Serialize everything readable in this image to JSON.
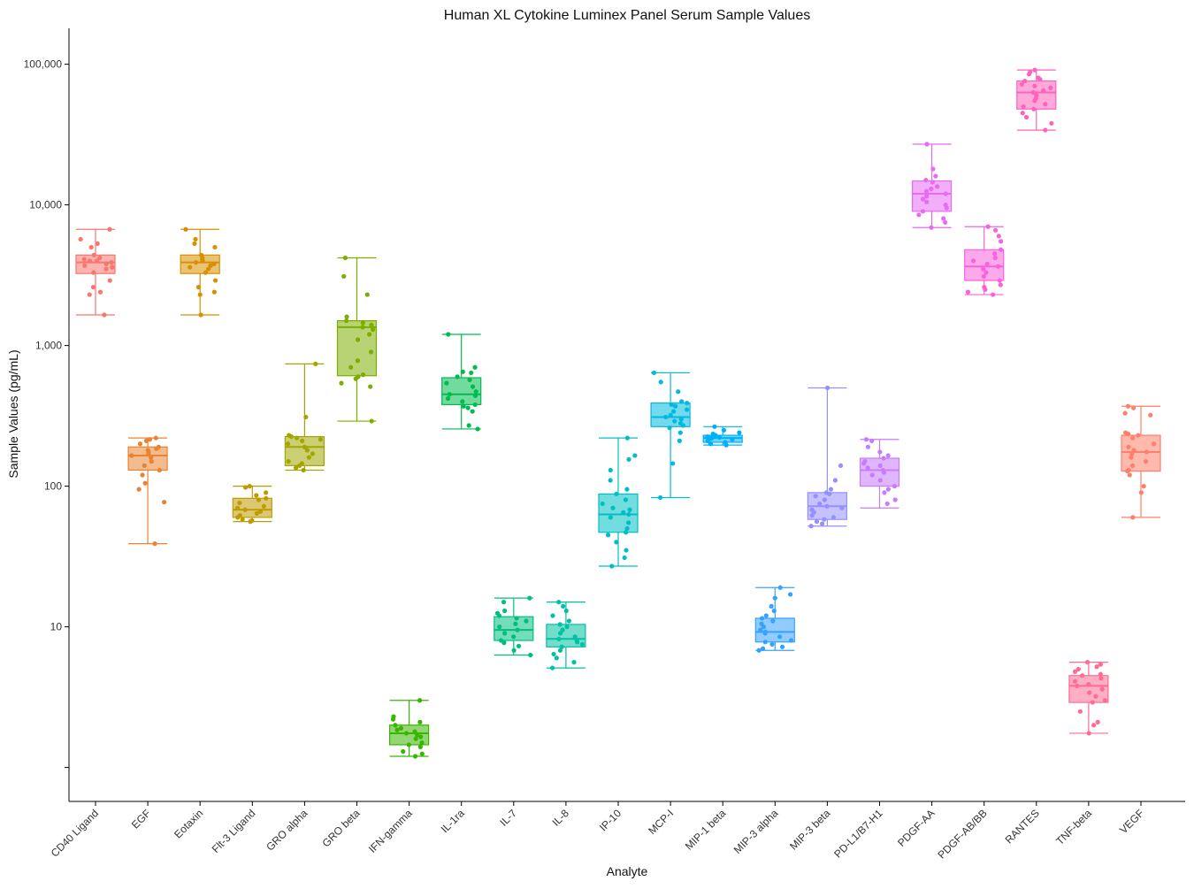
{
  "chart_data": {
    "type": "box",
    "title": "Human XL Cytokine Luminex Panel Serum Sample Values",
    "xlabel": "Analyte",
    "ylabel": "Sample Values (pg/mL)",
    "yscale": "log10",
    "ylim": [
      0.6,
      180000
    ],
    "y_ticks": [
      10,
      100,
      1000,
      10000,
      100000
    ],
    "y_tick_labels": [
      "10",
      "100",
      "1,000",
      "10,000",
      "100,000"
    ],
    "grid": false,
    "legend": "none",
    "categories": [
      "CD40 Ligand",
      "EGF",
      "Eotaxin",
      "Flt-3 Ligand",
      "GRO alpha",
      "GRO beta",
      "IFN-gamma",
      "IL-1ra",
      "IL-7",
      "IL-8",
      "IP-10",
      "MCP-I",
      "MIP-1 beta",
      "MIP-3 alpha",
      "MIP-3 beta",
      "PD-L1/B7-H1",
      "PDGF-AA",
      "PDGF-AB/BB",
      "RANTES",
      "TNF-beta",
      "VEGF"
    ],
    "colors": [
      "#F8766D",
      "#EA8331",
      "#D89000",
      "#C09B00",
      "#A3A500",
      "#7CAE00",
      "#39B600",
      "#00BB4E",
      "#00BF7D",
      "#00C1A3",
      "#00BFC4",
      "#00BAE0",
      "#00B0F6",
      "#35A2FF",
      "#9590FF",
      "#C77CFF",
      "#E76BF3",
      "#FA62DB",
      "#FF62BC",
      "#FF6C91",
      "#FF7F6A"
    ],
    "boxes": [
      {
        "name": "CD40 Ligand",
        "min": 1650,
        "q1": 3250,
        "median": 3900,
        "q3": 4400,
        "max": 6700
      },
      {
        "name": "EGF",
        "min": 39,
        "q1": 130,
        "median": 165,
        "q3": 190,
        "max": 220
      },
      {
        "name": "Eotaxin",
        "min": 1650,
        "q1": 3250,
        "median": 3900,
        "q3": 4400,
        "max": 6700
      },
      {
        "name": "Flt-3 Ligand",
        "min": 56,
        "q1": 60,
        "median": 68,
        "q3": 82,
        "max": 100
      },
      {
        "name": "GRO alpha",
        "min": 130,
        "q1": 140,
        "median": 190,
        "q3": 225,
        "max": 740
      },
      {
        "name": "GRO beta",
        "min": 290,
        "q1": 610,
        "median": 1350,
        "q3": 1500,
        "max": 4200
      },
      {
        "name": "IFN-gamma",
        "min": 1.2,
        "q1": 1.45,
        "median": 1.75,
        "q3": 2.0,
        "max": 3.0
      },
      {
        "name": "IL-1ra",
        "min": 255,
        "q1": 380,
        "median": 450,
        "q3": 590,
        "max": 1200
      },
      {
        "name": "IL-7",
        "min": 6.3,
        "q1": 8.0,
        "median": 9.5,
        "q3": 11.8,
        "max": 16
      },
      {
        "name": "IL-8",
        "min": 5.1,
        "q1": 7.2,
        "median": 8.2,
        "q3": 10.4,
        "max": 15
      },
      {
        "name": "IP-10",
        "min": 27,
        "q1": 47,
        "median": 63,
        "q3": 88,
        "max": 220
      },
      {
        "name": "MCP-I",
        "min": 83,
        "q1": 265,
        "median": 310,
        "q3": 390,
        "max": 640
      },
      {
        "name": "MIP-1 beta",
        "min": 196,
        "q1": 205,
        "median": 220,
        "q3": 230,
        "max": 265
      },
      {
        "name": "MIP-3 alpha",
        "min": 6.8,
        "q1": 7.8,
        "median": 9.2,
        "q3": 11.5,
        "max": 19
      },
      {
        "name": "MIP-3 beta",
        "min": 52,
        "q1": 58,
        "median": 72,
        "q3": 90,
        "max": 500
      },
      {
        "name": "PD-L1/B7-H1",
        "min": 70,
        "q1": 100,
        "median": 130,
        "q3": 158,
        "max": 215
      },
      {
        "name": "PDGF-AA",
        "min": 6900,
        "q1": 9000,
        "median": 12000,
        "q3": 14800,
        "max": 27000
      },
      {
        "name": "PDGF-AB/BB",
        "min": 2300,
        "q1": 2900,
        "median": 3650,
        "q3": 4800,
        "max": 7000
      },
      {
        "name": "RANTES",
        "min": 34000,
        "q1": 48000,
        "median": 63000,
        "q3": 76000,
        "max": 91000
      },
      {
        "name": "TNF-beta",
        "min": 1.75,
        "q1": 2.9,
        "median": 3.8,
        "q3": 4.5,
        "max": 5.6
      },
      {
        "name": "VEGF",
        "min": 60,
        "q1": 128,
        "median": 175,
        "q3": 230,
        "max": 370
      }
    ],
    "points": [
      [
        6700,
        5700,
        5300,
        5000,
        4400,
        4200,
        4100,
        4000,
        4000,
        3900,
        3800,
        3700,
        3600,
        3500,
        3300,
        2900,
        2600,
        2400,
        2300,
        1650
      ],
      [
        220,
        215,
        210,
        200,
        190,
        185,
        180,
        175,
        170,
        165,
        160,
        150,
        140,
        130,
        120,
        105,
        95,
        77,
        39
      ],
      [
        6700,
        5700,
        5300,
        5000,
        4400,
        4200,
        4100,
        4000,
        4000,
        3900,
        3800,
        3700,
        3600,
        3500,
        3300,
        2900,
        2600,
        2400,
        2300,
        1650
      ],
      [
        100,
        98,
        90,
        86,
        82,
        80,
        76,
        72,
        70,
        68,
        66,
        64,
        62,
        60,
        58,
        57,
        56
      ],
      [
        740,
        310,
        230,
        225,
        220,
        215,
        210,
        200,
        190,
        180,
        170,
        160,
        150,
        145,
        140,
        135,
        130
      ],
      [
        4200,
        3100,
        2300,
        1600,
        1500,
        1450,
        1400,
        1350,
        1300,
        1200,
        1100,
        900,
        780,
        700,
        620,
        600,
        580,
        540,
        510,
        290
      ],
      [
        3.0,
        2.3,
        2.2,
        2.1,
        2.0,
        1.9,
        1.85,
        1.8,
        1.75,
        1.7,
        1.65,
        1.6,
        1.5,
        1.45,
        1.4,
        1.3,
        1.25,
        1.2
      ],
      [
        1200,
        700,
        650,
        640,
        600,
        570,
        540,
        510,
        470,
        450,
        440,
        420,
        400,
        380,
        370,
        360,
        340,
        270,
        255
      ],
      [
        16,
        15,
        13,
        12.5,
        12,
        11.5,
        11,
        10.5,
        10,
        9.5,
        9,
        8.5,
        8,
        7.7,
        7.3,
        6.8,
        6.3
      ],
      [
        15,
        14,
        13,
        12,
        11,
        10.4,
        10,
        9.5,
        9,
        8.5,
        8.2,
        8,
        7.8,
        7.5,
        7.2,
        6.8,
        6.4,
        6,
        5.6,
        5.1
      ],
      [
        220,
        165,
        155,
        130,
        110,
        95,
        88,
        80,
        75,
        70,
        68,
        65,
        63,
        60,
        55,
        50,
        47,
        45,
        40,
        35,
        31,
        27
      ],
      [
        640,
        550,
        470,
        400,
        390,
        380,
        370,
        350,
        340,
        320,
        310,
        300,
        290,
        280,
        270,
        260,
        240,
        210,
        145,
        83
      ],
      [
        265,
        250,
        240,
        235,
        230,
        228,
        225,
        222,
        220,
        218,
        215,
        210,
        205,
        200,
        196
      ],
      [
        19,
        17,
        16,
        14,
        13,
        12,
        11.5,
        11,
        10.5,
        10,
        9.5,
        9.2,
        9,
        8.5,
        8,
        7.8,
        7.5,
        7.2,
        7,
        6.8
      ],
      [
        500,
        140,
        110,
        95,
        90,
        88,
        85,
        80,
        75,
        72,
        70,
        68,
        65,
        62,
        60,
        58,
        56,
        54,
        52
      ],
      [
        215,
        210,
        190,
        175,
        165,
        158,
        150,
        145,
        140,
        135,
        130,
        125,
        120,
        110,
        100,
        95,
        90,
        80,
        75
      ],
      [
        27000,
        18000,
        16000,
        15000,
        14500,
        13500,
        13000,
        12500,
        12000,
        11500,
        11000,
        10500,
        10000,
        9500,
        9000,
        8500,
        8000,
        7500,
        6900
      ],
      [
        7000,
        6600,
        6000,
        5500,
        4800,
        4500,
        4200,
        4000,
        3800,
        3650,
        3500,
        3300,
        3100,
        2900,
        2700,
        2600,
        2500,
        2400,
        2300
      ],
      [
        91000,
        88000,
        85000,
        80000,
        78000,
        76000,
        72000,
        70000,
        68000,
        65000,
        63000,
        60000,
        57000,
        55000,
        52000,
        50000,
        48000,
        45000,
        42000,
        38000,
        34000
      ],
      [
        5.6,
        5.4,
        5.2,
        5.0,
        4.8,
        4.6,
        4.5,
        4.3,
        4.1,
        3.9,
        3.8,
        3.6,
        3.4,
        3.2,
        3.0,
        2.9,
        2.5,
        2.1,
        2.0,
        1.75
      ],
      [
        370,
        360,
        330,
        320,
        240,
        235,
        230,
        220,
        200,
        190,
        180,
        175,
        170,
        160,
        150,
        140,
        130,
        128,
        120,
        100,
        90,
        60
      ]
    ]
  }
}
